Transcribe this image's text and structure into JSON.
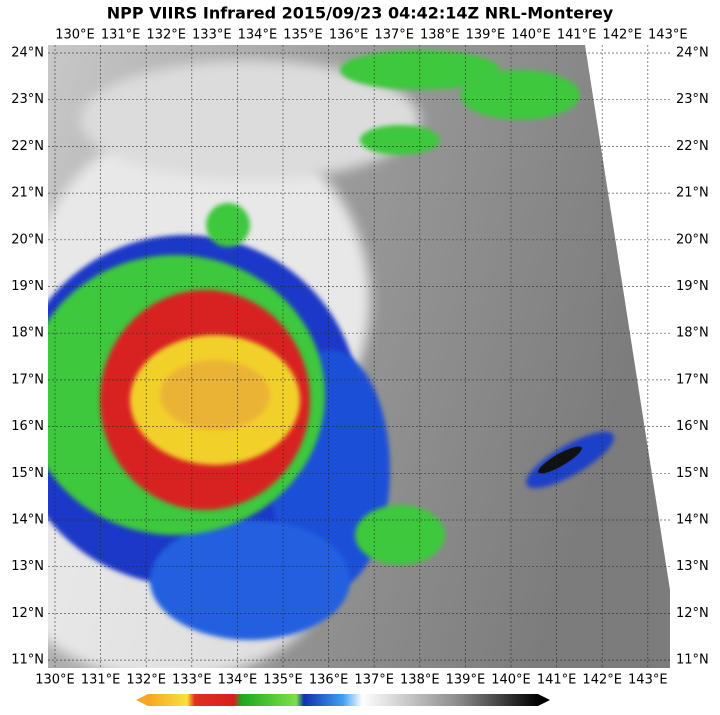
{
  "title": "NPP VIIRS Infrared 2015/09/23 04:42:14Z NRL-Monterey",
  "longitude_labels": [
    "130°E",
    "131°E",
    "132°E",
    "133°E",
    "134°E",
    "135°E",
    "136°E",
    "137°E",
    "138°E",
    "139°E",
    "140°E",
    "141°E",
    "142°E",
    "143°E"
  ],
  "latitude_labels": [
    "24°N",
    "23°N",
    "22°N",
    "21°N",
    "20°N",
    "19°N",
    "18°N",
    "17°N",
    "16°N",
    "15°N",
    "14°N",
    "13°N",
    "12°N",
    "11°N"
  ]
}
